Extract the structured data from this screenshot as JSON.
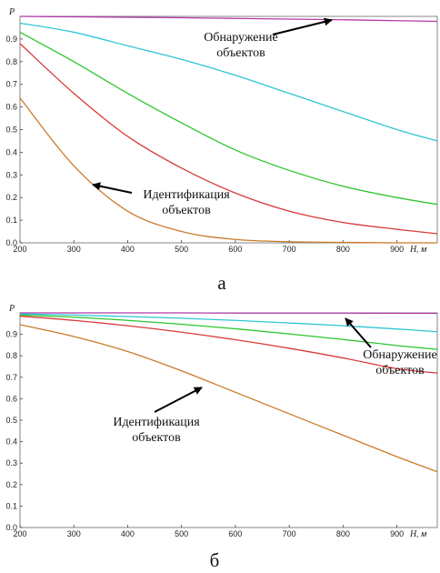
{
  "chart_data": [
    {
      "type": "line",
      "panel_label": "а",
      "xlabel": "H",
      "xunit": ", м",
      "ylabel": "P",
      "xlim": [
        200,
        975
      ],
      "ylim": [
        0,
        1
      ],
      "xticks": [
        "200",
        "300",
        "400",
        "500",
        "600",
        "700",
        "800",
        "900"
      ],
      "yticks": [
        "0.0",
        "0.1",
        "0.2",
        "0.3",
        "0.4",
        "0.5",
        "0.6",
        "0.7",
        "0.8",
        "0.9"
      ],
      "x": [
        200,
        300,
        400,
        500,
        600,
        700,
        800,
        900,
        975
      ],
      "series": [
        {
          "color": "#b03aa8",
          "values": [
            1.0,
            0.998,
            0.996,
            0.994,
            0.991,
            0.988,
            0.985,
            0.981,
            0.978
          ]
        },
        {
          "color": "#2fc6d4",
          "values": [
            0.97,
            0.93,
            0.87,
            0.81,
            0.74,
            0.66,
            0.58,
            0.5,
            0.45
          ]
        },
        {
          "color": "#2ec42e",
          "values": [
            0.93,
            0.8,
            0.66,
            0.53,
            0.41,
            0.32,
            0.25,
            0.2,
            0.17
          ]
        },
        {
          "color": "#d83a3a",
          "values": [
            0.88,
            0.66,
            0.47,
            0.33,
            0.22,
            0.14,
            0.09,
            0.06,
            0.04
          ]
        },
        {
          "color": "#cc7a2b",
          "values": [
            0.64,
            0.34,
            0.14,
            0.05,
            0.015,
            0.005,
            0.002,
            0.0,
            0.0
          ]
        }
      ],
      "annotations": [
        {
          "lines": [
            "Обнаружение",
            "объектов"
          ]
        },
        {
          "lines": [
            "Идентификация",
            "объектов"
          ]
        }
      ]
    },
    {
      "type": "line",
      "panel_label": "б",
      "xlabel": "H",
      "xunit": ", м",
      "ylabel": "P",
      "xlim": [
        200,
        975
      ],
      "ylim": [
        0,
        1
      ],
      "xticks": [
        "200",
        "300",
        "400",
        "500",
        "600",
        "700",
        "800",
        "900"
      ],
      "yticks": [
        "0.0",
        "0.1",
        "0.2",
        "0.3",
        "0.4",
        "0.5",
        "0.6",
        "0.7",
        "0.8",
        "0.9"
      ],
      "x": [
        200,
        300,
        400,
        500,
        600,
        700,
        800,
        900,
        975
      ],
      "series": [
        {
          "color": "#b03aa8",
          "values": [
            1.0,
            1.0,
            1.0,
            1.0,
            0.999,
            0.999,
            0.999,
            0.998,
            0.998
          ]
        },
        {
          "color": "#2fc6d4",
          "values": [
            0.995,
            0.99,
            0.983,
            0.975,
            0.965,
            0.953,
            0.94,
            0.925,
            0.912
          ]
        },
        {
          "color": "#2ec42e",
          "values": [
            0.99,
            0.98,
            0.965,
            0.947,
            0.926,
            0.902,
            0.876,
            0.848,
            0.83
          ]
        },
        {
          "color": "#d83a3a",
          "values": [
            0.985,
            0.965,
            0.94,
            0.91,
            0.875,
            0.835,
            0.79,
            0.74,
            0.72
          ]
        },
        {
          "color": "#cc7a2b",
          "values": [
            0.945,
            0.89,
            0.82,
            0.73,
            0.63,
            0.53,
            0.43,
            0.33,
            0.26
          ]
        }
      ],
      "annotations": [
        {
          "lines": [
            "Обнаружение",
            "объектов"
          ]
        },
        {
          "lines": [
            "Идентификация",
            "объектов"
          ]
        }
      ]
    }
  ]
}
